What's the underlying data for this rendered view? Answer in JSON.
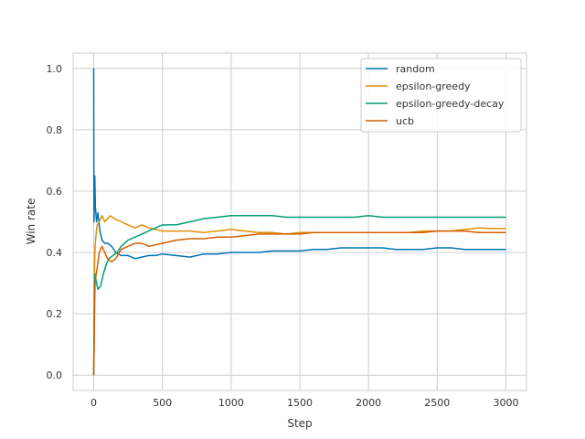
{
  "chart_data": {
    "type": "line",
    "xlabel": "Step",
    "ylabel": "Win rate",
    "xlim": [
      -150,
      3150
    ],
    "ylim": [
      -0.05,
      1.05
    ],
    "x_ticks": [
      0,
      500,
      1000,
      1500,
      2000,
      2500,
      3000
    ],
    "y_ticks": [
      0.0,
      0.2,
      0.4,
      0.6,
      0.8,
      1.0
    ],
    "x_tick_labels": [
      "0",
      "500",
      "1000",
      "1500",
      "2000",
      "2500",
      "3000"
    ],
    "y_tick_labels": [
      "0.0",
      "0.2",
      "0.4",
      "0.6",
      "0.8",
      "1.0"
    ],
    "grid": true,
    "legend_position": "top-right",
    "series": [
      {
        "name": "random",
        "color": "#0173b2",
        "points": [
          [
            0,
            1.0
          ],
          [
            2,
            0.5
          ],
          [
            5,
            0.6
          ],
          [
            8,
            0.65
          ],
          [
            12,
            0.55
          ],
          [
            20,
            0.5
          ],
          [
            30,
            0.53
          ],
          [
            45,
            0.47
          ],
          [
            60,
            0.44
          ],
          [
            80,
            0.43
          ],
          [
            100,
            0.43
          ],
          [
            130,
            0.42
          ],
          [
            160,
            0.4
          ],
          [
            200,
            0.39
          ],
          [
            250,
            0.39
          ],
          [
            300,
            0.38
          ],
          [
            350,
            0.385
          ],
          [
            400,
            0.39
          ],
          [
            450,
            0.39
          ],
          [
            500,
            0.395
          ],
          [
            600,
            0.39
          ],
          [
            700,
            0.385
          ],
          [
            800,
            0.395
          ],
          [
            900,
            0.395
          ],
          [
            1000,
            0.4
          ],
          [
            1100,
            0.4
          ],
          [
            1200,
            0.4
          ],
          [
            1300,
            0.405
          ],
          [
            1400,
            0.405
          ],
          [
            1500,
            0.405
          ],
          [
            1600,
            0.41
          ],
          [
            1700,
            0.41
          ],
          [
            1800,
            0.415
          ],
          [
            1900,
            0.415
          ],
          [
            2000,
            0.415
          ],
          [
            2100,
            0.415
          ],
          [
            2200,
            0.41
          ],
          [
            2300,
            0.41
          ],
          [
            2400,
            0.41
          ],
          [
            2500,
            0.415
          ],
          [
            2600,
            0.415
          ],
          [
            2700,
            0.41
          ],
          [
            2800,
            0.41
          ],
          [
            2900,
            0.41
          ],
          [
            3000,
            0.41
          ]
        ]
      },
      {
        "name": "epsilon-greedy",
        "color": "#de8f05",
        "points": [
          [
            0,
            0.0
          ],
          [
            3,
            0.2
          ],
          [
            6,
            0.35
          ],
          [
            10,
            0.42
          ],
          [
            15,
            0.45
          ],
          [
            25,
            0.49
          ],
          [
            40,
            0.5
          ],
          [
            60,
            0.52
          ],
          [
            80,
            0.5
          ],
          [
            100,
            0.51
          ],
          [
            120,
            0.52
          ],
          [
            150,
            0.51
          ],
          [
            200,
            0.5
          ],
          [
            250,
            0.49
          ],
          [
            300,
            0.48
          ],
          [
            350,
            0.49
          ],
          [
            400,
            0.48
          ],
          [
            450,
            0.475
          ],
          [
            500,
            0.47
          ],
          [
            600,
            0.47
          ],
          [
            700,
            0.47
          ],
          [
            800,
            0.465
          ],
          [
            900,
            0.47
          ],
          [
            1000,
            0.475
          ],
          [
            1100,
            0.47
          ],
          [
            1200,
            0.465
          ],
          [
            1300,
            0.465
          ],
          [
            1400,
            0.46
          ],
          [
            1500,
            0.465
          ],
          [
            1600,
            0.465
          ],
          [
            1700,
            0.465
          ],
          [
            1800,
            0.465
          ],
          [
            1900,
            0.465
          ],
          [
            2000,
            0.465
          ],
          [
            2100,
            0.465
          ],
          [
            2200,
            0.465
          ],
          [
            2300,
            0.465
          ],
          [
            2400,
            0.47
          ],
          [
            2500,
            0.47
          ],
          [
            2600,
            0.47
          ],
          [
            2700,
            0.475
          ],
          [
            2800,
            0.48
          ],
          [
            2900,
            0.478
          ],
          [
            3000,
            0.478
          ]
        ]
      },
      {
        "name": "epsilon-greedy-decay",
        "color": "#029e73",
        "points": [
          [
            0,
            0.0
          ],
          [
            3,
            0.15
          ],
          [
            6,
            0.3
          ],
          [
            10,
            0.33
          ],
          [
            20,
            0.3
          ],
          [
            30,
            0.28
          ],
          [
            50,
            0.29
          ],
          [
            70,
            0.33
          ],
          [
            90,
            0.36
          ],
          [
            110,
            0.38
          ],
          [
            140,
            0.39
          ],
          [
            170,
            0.4
          ],
          [
            200,
            0.42
          ],
          [
            250,
            0.44
          ],
          [
            300,
            0.45
          ],
          [
            350,
            0.46
          ],
          [
            400,
            0.47
          ],
          [
            450,
            0.48
          ],
          [
            500,
            0.49
          ],
          [
            600,
            0.49
          ],
          [
            700,
            0.5
          ],
          [
            800,
            0.51
          ],
          [
            900,
            0.515
          ],
          [
            1000,
            0.52
          ],
          [
            1100,
            0.52
          ],
          [
            1200,
            0.52
          ],
          [
            1300,
            0.52
          ],
          [
            1400,
            0.515
          ],
          [
            1500,
            0.515
          ],
          [
            1600,
            0.515
          ],
          [
            1700,
            0.515
          ],
          [
            1800,
            0.515
          ],
          [
            1900,
            0.515
          ],
          [
            2000,
            0.52
          ],
          [
            2100,
            0.515
          ],
          [
            2200,
            0.515
          ],
          [
            2300,
            0.515
          ],
          [
            2400,
            0.515
          ],
          [
            2500,
            0.515
          ],
          [
            2600,
            0.515
          ],
          [
            2700,
            0.515
          ],
          [
            2800,
            0.515
          ],
          [
            2900,
            0.515
          ],
          [
            3000,
            0.515
          ]
        ]
      },
      {
        "name": "ucb",
        "color": "#d55e00",
        "points": [
          [
            0,
            0.0
          ],
          [
            3,
            0.08
          ],
          [
            6,
            0.2
          ],
          [
            10,
            0.3
          ],
          [
            15,
            0.32
          ],
          [
            25,
            0.35
          ],
          [
            40,
            0.4
          ],
          [
            60,
            0.42
          ],
          [
            80,
            0.4
          ],
          [
            100,
            0.38
          ],
          [
            130,
            0.37
          ],
          [
            160,
            0.38
          ],
          [
            200,
            0.41
          ],
          [
            250,
            0.42
          ],
          [
            300,
            0.43
          ],
          [
            350,
            0.43
          ],
          [
            400,
            0.42
          ],
          [
            450,
            0.425
          ],
          [
            500,
            0.43
          ],
          [
            600,
            0.44
          ],
          [
            700,
            0.445
          ],
          [
            800,
            0.445
          ],
          [
            900,
            0.45
          ],
          [
            1000,
            0.45
          ],
          [
            1100,
            0.455
          ],
          [
            1200,
            0.46
          ],
          [
            1300,
            0.46
          ],
          [
            1400,
            0.46
          ],
          [
            1500,
            0.46
          ],
          [
            1600,
            0.465
          ],
          [
            1700,
            0.465
          ],
          [
            1800,
            0.465
          ],
          [
            1900,
            0.465
          ],
          [
            2000,
            0.465
          ],
          [
            2100,
            0.465
          ],
          [
            2200,
            0.465
          ],
          [
            2300,
            0.465
          ],
          [
            2400,
            0.465
          ],
          [
            2500,
            0.47
          ],
          [
            2600,
            0.47
          ],
          [
            2700,
            0.47
          ],
          [
            2800,
            0.465
          ],
          [
            2900,
            0.465
          ],
          [
            3000,
            0.465
          ]
        ]
      }
    ]
  }
}
